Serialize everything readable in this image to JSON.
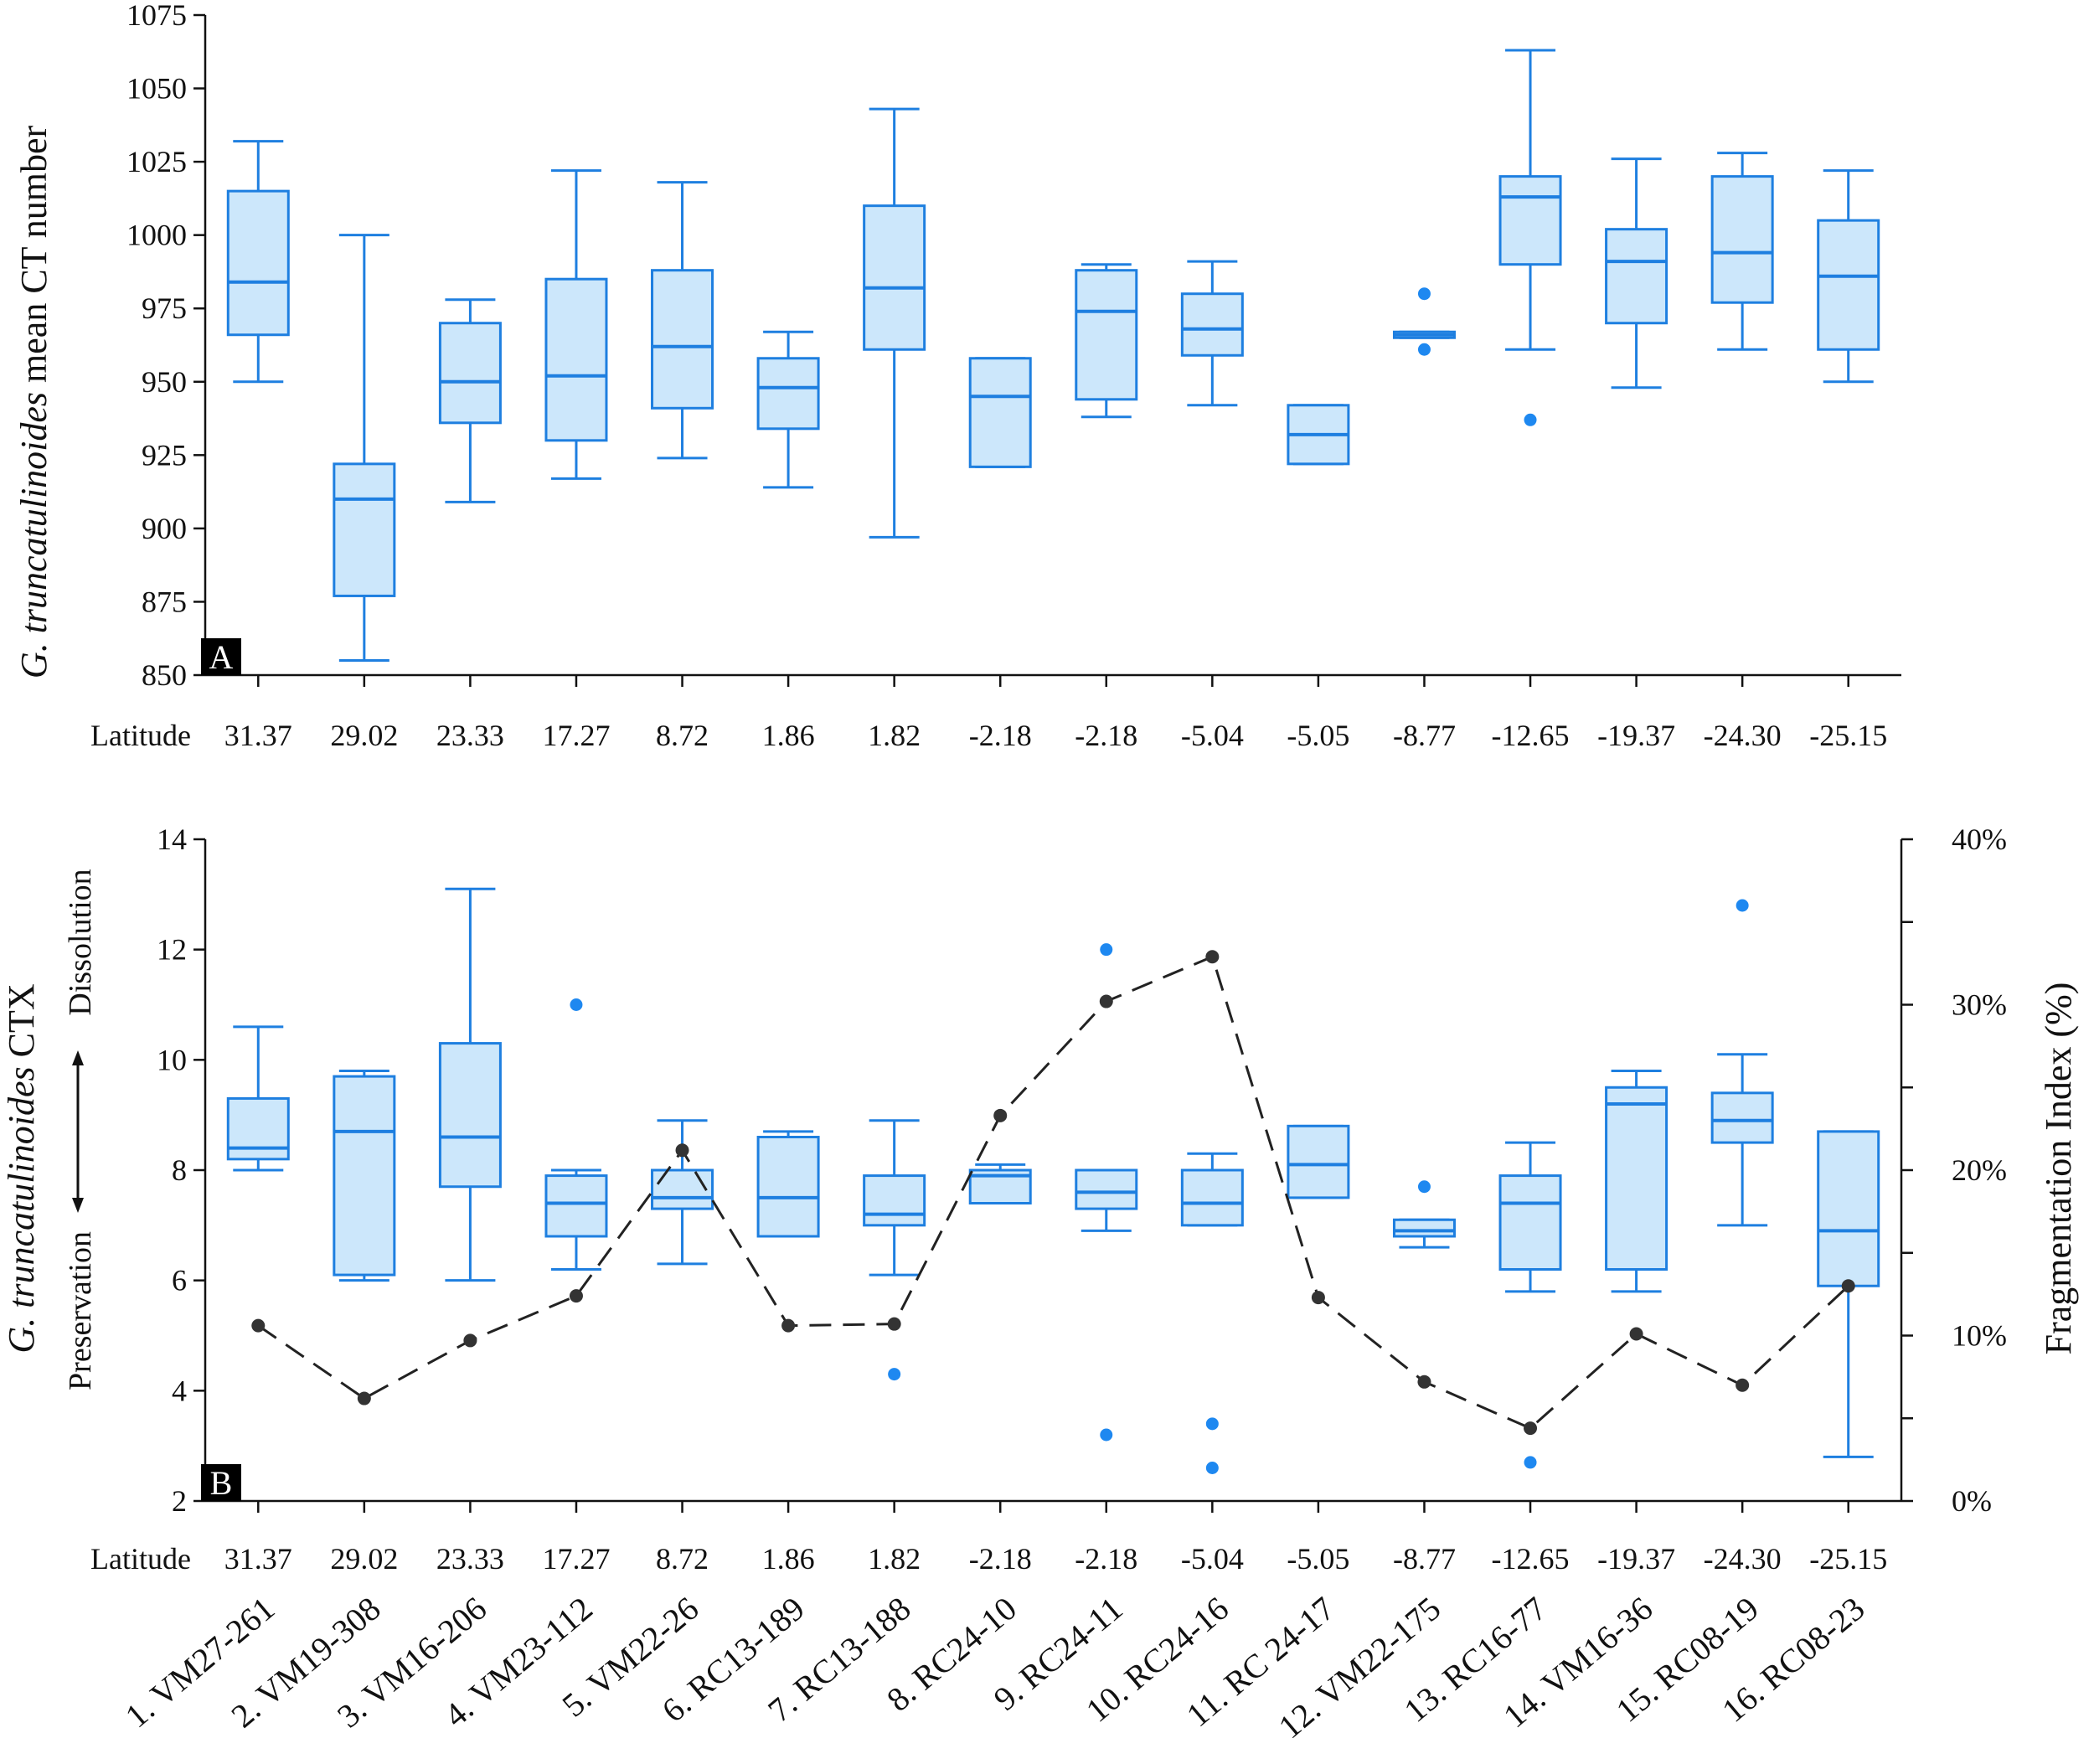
{
  "colors": {
    "box_stroke": "#1E7FE0",
    "box_fill": "#CCE7FB",
    "outlier": "#1E88F0",
    "line": "#222222",
    "marker": "#333333",
    "panel_tag_bg": "#000000",
    "panel_tag_text": "#ffffff"
  },
  "icons": {
    "frag_marker": "filled-circle",
    "outlier_marker": "filled-circle"
  },
  "latitude_label": "Latitude",
  "latitudes": [
    "31.37",
    "29.02",
    "23.33",
    "17.27",
    "8.72",
    "1.86",
    "1.82",
    "-2.18",
    "-2.18",
    "-5.04",
    "-5.05",
    "-8.77",
    "-12.65",
    "-19.37",
    "-24.30",
    "-25.15"
  ],
  "samples": [
    "1. VM27-261",
    "2. VM19-308",
    "3. VM16-206",
    "4. VM23-112",
    "5. VM22-26",
    "6. RC13-189",
    "7. RC13-188",
    "8. RC24-10",
    "9. RC24-11",
    "10. RC24-16",
    "11. RC 24-17",
    "12. VM22-175",
    "13. RC16-77",
    "14. VM16-36",
    "15. RC08-19",
    "16. RC08-23"
  ],
  "chart_data": [
    {
      "type": "box",
      "panel": "A",
      "ylabel_italic": "G. truncatulinoides",
      "ylabel_rest": " mean CT number",
      "ylim": [
        850,
        1075
      ],
      "yticks": [
        850,
        875,
        900,
        925,
        950,
        975,
        1000,
        1025,
        1050,
        1075
      ],
      "boxes": [
        {
          "min": 950,
          "q1": 966,
          "median": 984,
          "q3": 1015,
          "max": 1032,
          "outliers": []
        },
        {
          "min": 855,
          "q1": 877,
          "median": 910,
          "q3": 922,
          "max": 1000,
          "outliers": []
        },
        {
          "min": 909,
          "q1": 936,
          "median": 950,
          "q3": 970,
          "max": 978,
          "outliers": []
        },
        {
          "min": 917,
          "q1": 930,
          "median": 952,
          "q3": 985,
          "max": 1022,
          "outliers": []
        },
        {
          "min": 924,
          "q1": 941,
          "median": 962,
          "q3": 988,
          "max": 1018,
          "outliers": []
        },
        {
          "min": 914,
          "q1": 934,
          "median": 948,
          "q3": 958,
          "max": 967,
          "outliers": []
        },
        {
          "min": 897,
          "q1": 961,
          "median": 982,
          "q3": 1010,
          "max": 1043,
          "outliers": []
        },
        {
          "min": 921,
          "q1": 921,
          "median": 945,
          "q3": 958,
          "max": 958,
          "outliers": []
        },
        {
          "min": 938,
          "q1": 944,
          "median": 974,
          "q3": 988,
          "max": 990,
          "outliers": []
        },
        {
          "min": 942,
          "q1": 959,
          "median": 968,
          "q3": 980,
          "max": 991,
          "outliers": []
        },
        {
          "min": 922,
          "q1": 922,
          "median": 932,
          "q3": 942,
          "max": 942,
          "outliers": []
        },
        {
          "min": 965,
          "q1": 965,
          "median": 966,
          "q3": 967,
          "max": 967,
          "outliers": [
            961,
            980
          ]
        },
        {
          "min": 961,
          "q1": 990,
          "median": 1013,
          "q3": 1020,
          "max": 1063,
          "outliers": [
            937
          ]
        },
        {
          "min": 948,
          "q1": 970,
          "median": 991,
          "q3": 1002,
          "max": 1026,
          "outliers": []
        },
        {
          "min": 961,
          "q1": 977,
          "median": 994,
          "q3": 1020,
          "max": 1028,
          "outliers": []
        },
        {
          "min": 950,
          "q1": 961,
          "median": 986,
          "q3": 1005,
          "max": 1022,
          "outliers": []
        }
      ]
    },
    {
      "type": "box",
      "panel": "B",
      "ylabel_italic": "G. truncatulinoides",
      "ylabel_rest": " CTX",
      "ylabel_right": "Fragmentation Index (%)",
      "zone_top": "Dissolution",
      "zone_bottom": "Preservation",
      "ylim": [
        2,
        14
      ],
      "yticks": [
        2,
        4,
        6,
        8,
        10,
        12,
        14
      ],
      "y2lim": [
        0,
        40
      ],
      "y2ticks": [
        "0%",
        "10%",
        "20%",
        "30%",
        "40%"
      ],
      "boxes": [
        {
          "min": 8.0,
          "q1": 8.2,
          "median": 8.4,
          "q3": 9.3,
          "max": 10.6,
          "outliers": []
        },
        {
          "min": 6.0,
          "q1": 6.1,
          "median": 8.7,
          "q3": 9.7,
          "max": 9.8,
          "outliers": []
        },
        {
          "min": 6.0,
          "q1": 7.7,
          "median": 8.6,
          "q3": 10.3,
          "max": 13.1,
          "outliers": []
        },
        {
          "min": 6.2,
          "q1": 6.8,
          "median": 7.4,
          "q3": 7.9,
          "max": 8.0,
          "outliers": [
            11.0
          ]
        },
        {
          "min": 6.3,
          "q1": 7.3,
          "median": 7.5,
          "q3": 8.0,
          "max": 8.9,
          "outliers": []
        },
        {
          "min": 6.8,
          "q1": 6.8,
          "median": 7.5,
          "q3": 8.6,
          "max": 8.7,
          "outliers": []
        },
        {
          "min": 6.1,
          "q1": 7.0,
          "median": 7.2,
          "q3": 7.9,
          "max": 8.9,
          "outliers": [
            4.3
          ]
        },
        {
          "min": 7.4,
          "q1": 7.4,
          "median": 7.9,
          "q3": 8.0,
          "max": 8.1,
          "outliers": []
        },
        {
          "min": 6.9,
          "q1": 7.3,
          "median": 7.6,
          "q3": 8.0,
          "max": 8.0,
          "outliers": [
            3.2,
            12.0
          ]
        },
        {
          "min": 7.0,
          "q1": 7.0,
          "median": 7.4,
          "q3": 8.0,
          "max": 8.3,
          "outliers": [
            2.6,
            3.4
          ]
        },
        {
          "min": 7.5,
          "q1": 7.5,
          "median": 8.1,
          "q3": 8.8,
          "max": 8.8,
          "outliers": []
        },
        {
          "min": 6.6,
          "q1": 6.8,
          "median": 6.9,
          "q3": 7.1,
          "max": 7.1,
          "outliers": [
            7.7
          ]
        },
        {
          "min": 5.8,
          "q1": 6.2,
          "median": 7.4,
          "q3": 7.9,
          "max": 8.5,
          "outliers": [
            2.7
          ]
        },
        {
          "min": 5.8,
          "q1": 6.2,
          "median": 9.2,
          "q3": 9.5,
          "max": 9.8,
          "outliers": []
        },
        {
          "min": 7.0,
          "q1": 8.5,
          "median": 8.9,
          "q3": 9.4,
          "max": 10.1,
          "outliers": [
            12.8
          ]
        },
        {
          "min": 2.8,
          "q1": 5.9,
          "median": 6.9,
          "q3": 8.7,
          "max": 8.7,
          "outliers": []
        }
      ],
      "fragmentation_index": [
        10.6,
        6.2,
        9.7,
        12.4,
        21.2,
        10.6,
        10.7,
        23.3,
        30.2,
        32.9,
        12.3,
        7.2,
        4.4,
        10.1,
        7.0,
        13.0
      ]
    }
  ]
}
